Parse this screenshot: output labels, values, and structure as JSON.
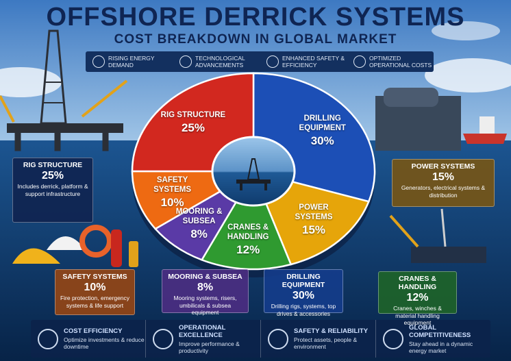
{
  "header": {
    "title": "OFFSHORE DERRICK SYSTEMS",
    "subtitle": "COST BREAKDOWN IN GLOBAL MARKET"
  },
  "drivers": [
    "RISING ENERGY DEMAND",
    "TECHNOLOGICAL ADVANCEMENTS",
    "ENHANCED SAFETY & EFFICIENCY",
    "OPTIMIZED OPERATIONAL COSTS"
  ],
  "chart_data": {
    "type": "pie",
    "donut": true,
    "categories": [
      "DRILLING EQUIPMENT",
      "POWER SYSTEMS",
      "CRANES & HANDLING",
      "MOORING & SUBSEA",
      "SAFETY SYSTEMS",
      "RIG STRUCTURE"
    ],
    "values": [
      30,
      15,
      12,
      8,
      10,
      25
    ],
    "value_labels": [
      "30%",
      "15%",
      "12%",
      "8%",
      "10%",
      "25%"
    ],
    "colors": [
      "#1c4fb6",
      "#e6a50a",
      "#2f9a30",
      "#5a3aa6",
      "#ee6a12",
      "#d2281f"
    ]
  },
  "callouts": [
    "Drilling rigs, systems, top drives & accessories",
    "Generators, electrical systems & distribution",
    "Cranes, winches & material handling equipment",
    "Mooring systems, risers, umbilicals & subsea equipment",
    "Fire protection, emergency systems & life support",
    "Includes derrick, platform & support infrastructure"
  ],
  "benefits": [
    {
      "title": "COST EFFICIENCY",
      "desc": "Optimize investments & reduce downtime"
    },
    {
      "title": "OPERATIONAL EXCELLENCE",
      "desc": "Improve performance & productivity"
    },
    {
      "title": "SAFETY & RELIABILITY",
      "desc": "Protect assets, people & environment"
    },
    {
      "title": "GLOBAL COMPETITIVENESS",
      "desc": "Stay ahead in a dynamic energy market"
    }
  ]
}
